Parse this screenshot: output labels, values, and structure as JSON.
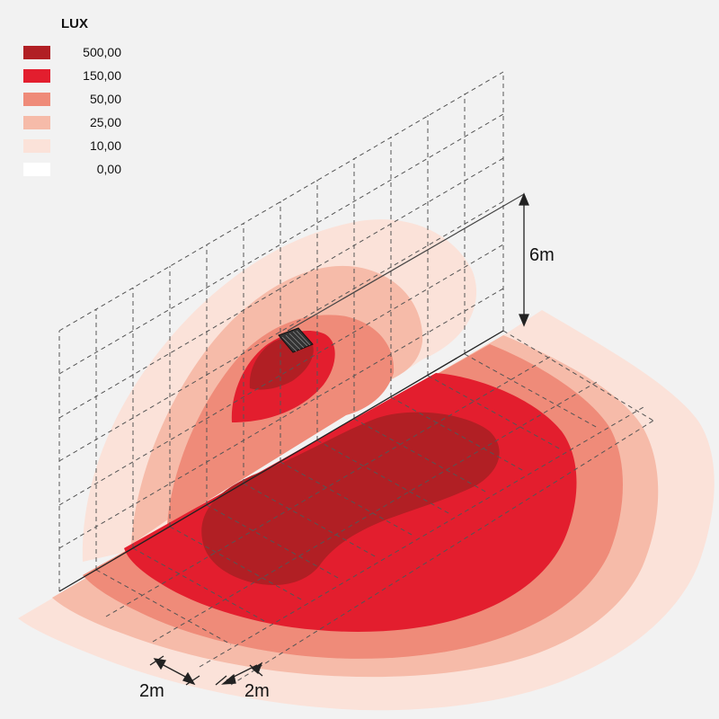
{
  "legend": {
    "title": "LUX",
    "items": [
      {
        "value": "500,00",
        "color": "#b11f24"
      },
      {
        "value": "150,00",
        "color": "#e31e2e"
      },
      {
        "value": "50,00",
        "color": "#ef8b79"
      },
      {
        "value": "25,00",
        "color": "#f6bba9"
      },
      {
        "value": "10,00",
        "color": "#fbe2d9"
      },
      {
        "value": "0,00",
        "color": "#ffffff"
      }
    ]
  },
  "dimensions": {
    "height_label": "6m",
    "depth_label": "2m",
    "width_label": "2m"
  }
}
